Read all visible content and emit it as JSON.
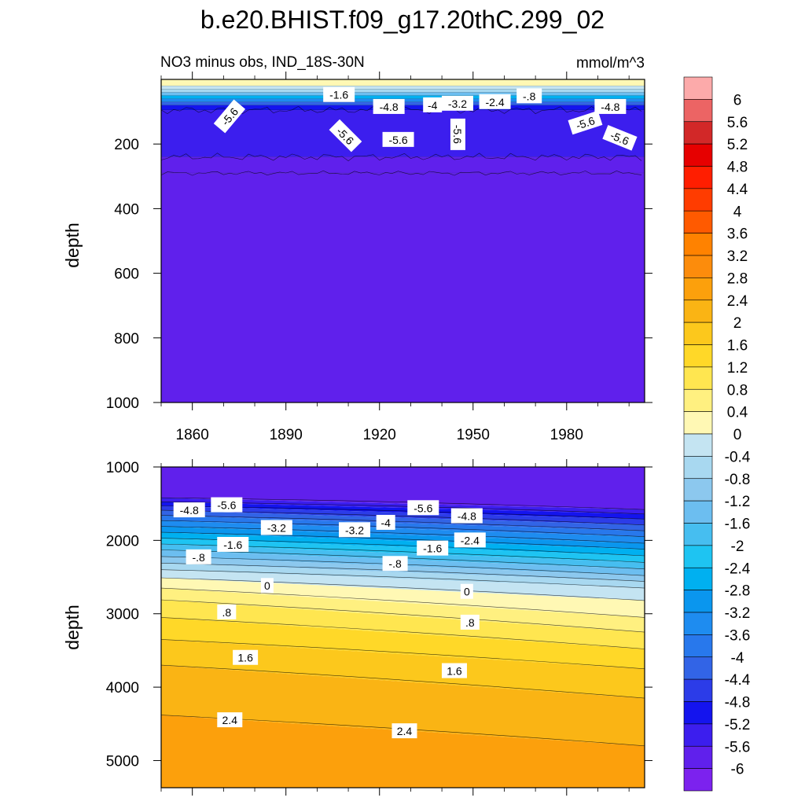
{
  "title": "b.e20.BHIST.f09_g17.20thC.299_02",
  "panel_left_label": "NO3 minus obs, IND_18S-30N",
  "panel_right_label": "mmol/m^3",
  "colors": {
    "levels": [
      -6.0,
      -5.6,
      -5.2,
      -4.8,
      -4.4,
      -4.0,
      -3.6,
      -3.2,
      -2.8,
      -2.4,
      -2.0,
      -1.6,
      -1.2,
      -0.8,
      -0.4,
      0.0,
      0.4,
      0.8,
      1.2,
      1.6,
      2.0,
      2.4,
      2.8,
      3.2,
      3.6,
      4.0,
      4.4,
      4.8,
      5.2,
      5.6,
      6.0
    ],
    "fills": [
      "#7c22ee",
      "#6020ec",
      "#3c1eee",
      "#1414ee",
      "#2c3ce8",
      "#3264e6",
      "#2878ec",
      "#1e8cf0",
      "#0a96ee",
      "#00b0f0",
      "#1ec4f2",
      "#46bef0",
      "#6cbef0",
      "#8cc8ee",
      "#a8d8f0",
      "#c4e4f2",
      "#fff8b4",
      "#fff080",
      "#ffe650",
      "#ffd828",
      "#fcc81c",
      "#fab414",
      "#fca00c",
      "#fc8c0c",
      "#ff8200",
      "#ff5a00",
      "#ff3c00",
      "#ff1e00",
      "#e60000",
      "#d22828",
      "#ec6464",
      "#fcaaaa"
    ]
  },
  "chart_data": [
    {
      "type": "contour",
      "name": "upper panel (0-1000 m)",
      "xlabel": "",
      "ylabel": "depth",
      "xlim": [
        1850,
        2005
      ],
      "ylim": [
        1000,
        0
      ],
      "xticks": [
        1860,
        1890,
        1920,
        1950,
        1980
      ],
      "yticks": [
        200,
        400,
        600,
        800,
        1000
      ],
      "depth_bands": [
        {
          "top": 0,
          "bottom": 20,
          "value": 0.2
        },
        {
          "top": 20,
          "bottom": 30,
          "value": -0.2
        },
        {
          "top": 30,
          "bottom": 40,
          "value": -0.8
        },
        {
          "top": 40,
          "bottom": 50,
          "value": -1.6
        },
        {
          "top": 50,
          "bottom": 60,
          "value": -2.6
        },
        {
          "top": 60,
          "bottom": 70,
          "value": -3.6
        },
        {
          "top": 70,
          "bottom": 80,
          "value": -4.4
        },
        {
          "top": 80,
          "bottom": 95,
          "value": -5.0
        },
        {
          "top": 95,
          "bottom": 240,
          "value": -5.4
        },
        {
          "top": 240,
          "bottom": 290,
          "value": -5.8
        },
        {
          "top": 290,
          "bottom": 1000,
          "value": -6.0
        }
      ],
      "contour_labels": [
        {
          "text": "-1.6",
          "x": 1907,
          "depth": 48,
          "angle": 0
        },
        {
          "text": "-4.8",
          "x": 1923,
          "depth": 85,
          "angle": 0
        },
        {
          "text": "-4",
          "x": 1937,
          "depth": 80,
          "angle": 0
        },
        {
          "text": "-3.2",
          "x": 1945,
          "depth": 75,
          "angle": 0
        },
        {
          "text": "-2.4",
          "x": 1957,
          "depth": 70,
          "angle": 0
        },
        {
          "text": "-.8",
          "x": 1968,
          "depth": 52,
          "angle": 0
        },
        {
          "text": "-4.8",
          "x": 1994,
          "depth": 85,
          "angle": 0
        },
        {
          "text": "-5.6",
          "x": 1872,
          "depth": 115,
          "angle": -50
        },
        {
          "text": "-5.6",
          "x": 1909,
          "depth": 175,
          "angle": 45
        },
        {
          "text": "-5.6",
          "x": 1926,
          "depth": 187,
          "angle": 0
        },
        {
          "text": "-5.6",
          "x": 1945,
          "depth": 170,
          "angle": 90
        },
        {
          "text": "-5.6",
          "x": 1986,
          "depth": 135,
          "angle": -18
        },
        {
          "text": "-5.6",
          "x": 1997,
          "depth": 182,
          "angle": 22
        }
      ]
    },
    {
      "type": "contour",
      "name": "lower panel (1000-5500 m)",
      "xlabel": "",
      "ylabel": "depth",
      "xlim": [
        1850,
        2005
      ],
      "ylim": [
        5370,
        1000
      ],
      "xticks": [
        1860,
        1890,
        1920,
        1950,
        1980
      ],
      "yticks": [
        1000,
        2000,
        3000,
        4000,
        5000
      ],
      "contour_levels": [
        -5.6,
        -5.2,
        -4.8,
        -4.4,
        -4.0,
        -3.6,
        -3.2,
        -2.8,
        -2.4,
        -2.0,
        -1.6,
        -1.2,
        -0.8,
        -0.4,
        0.0,
        0.4,
        0.8,
        1.2,
        1.6,
        2.0,
        2.4
      ],
      "contour_depth_left": [
        1420,
        1475,
        1530,
        1590,
        1660,
        1730,
        1810,
        1890,
        1970,
        2050,
        2130,
        2220,
        2310,
        2400,
        2510,
        2650,
        2810,
        3050,
        3350,
        3700,
        4380
      ],
      "contour_depth_right": [
        1580,
        1640,
        1710,
        1790,
        1870,
        1950,
        2040,
        2120,
        2210,
        2300,
        2390,
        2480,
        2560,
        2650,
        2820,
        3050,
        3250,
        3480,
        3750,
        4150,
        4800
      ],
      "contour_labels": [
        {
          "text": "-4.8",
          "x": 1859,
          "depth": 1590,
          "angle": 0
        },
        {
          "text": "-5.6",
          "x": 1871,
          "depth": 1520,
          "angle": 0
        },
        {
          "text": "-3.2",
          "x": 1887,
          "depth": 1830,
          "angle": 0
        },
        {
          "text": "-3.2",
          "x": 1912,
          "depth": 1860,
          "angle": 0
        },
        {
          "text": "-4",
          "x": 1922,
          "depth": 1760,
          "angle": 0
        },
        {
          "text": "-5.6",
          "x": 1934,
          "depth": 1560,
          "angle": 0
        },
        {
          "text": "-4.8",
          "x": 1948,
          "depth": 1670,
          "angle": 0
        },
        {
          "text": "-2.4",
          "x": 1949,
          "depth": 2000,
          "angle": 0
        },
        {
          "text": "-1.6",
          "x": 1873,
          "depth": 2060,
          "angle": 0
        },
        {
          "text": "-1.6",
          "x": 1937,
          "depth": 2110,
          "angle": 0
        },
        {
          "text": "-.8",
          "x": 1862,
          "depth": 2230,
          "angle": 0
        },
        {
          "text": "-.8",
          "x": 1925,
          "depth": 2320,
          "angle": 0
        },
        {
          "text": "0",
          "x": 1884,
          "depth": 2620,
          "angle": 0
        },
        {
          "text": "0",
          "x": 1948,
          "depth": 2700,
          "angle": 0
        },
        {
          "text": ".8",
          "x": 1871,
          "depth": 2980,
          "angle": 0
        },
        {
          "text": ".8",
          "x": 1949,
          "depth": 3120,
          "angle": 0
        },
        {
          "text": "1.6",
          "x": 1877,
          "depth": 3600,
          "angle": 0
        },
        {
          "text": "1.6",
          "x": 1944,
          "depth": 3780,
          "angle": 0
        },
        {
          "text": "2.4",
          "x": 1872,
          "depth": 4450,
          "angle": 0
        },
        {
          "text": "2.4",
          "x": 1928,
          "depth": 4600,
          "angle": 0
        }
      ]
    }
  ],
  "colorbar": {
    "labels": [
      "6",
      "5.6",
      "5.2",
      "4.8",
      "4.4",
      "4",
      "3.6",
      "3.2",
      "2.8",
      "2.4",
      "2",
      "1.6",
      "1.2",
      "0.8",
      "0.4",
      "0",
      "-0.4",
      "-0.8",
      "-1.2",
      "-1.6",
      "-2",
      "-2.4",
      "-2.8",
      "-3.2",
      "-3.6",
      "-4",
      "-4.4",
      "-4.8",
      "-5.2",
      "-5.6",
      "-6"
    ]
  }
}
